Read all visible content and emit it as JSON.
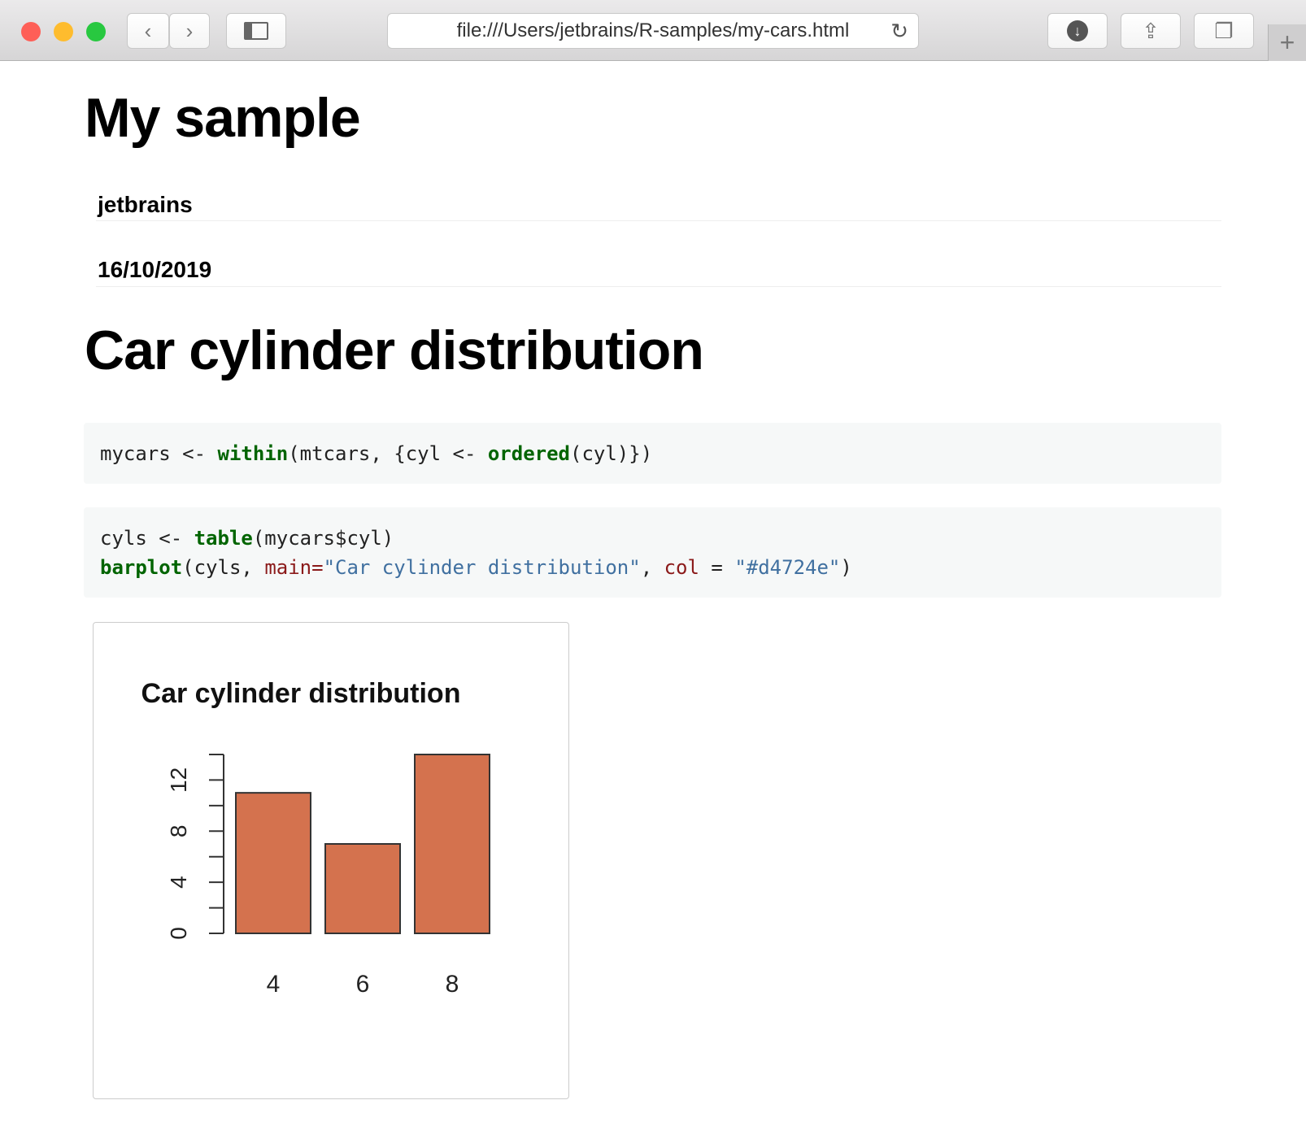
{
  "browser": {
    "url": "file:///Users/jetbrains/R-samples/my-cars.html",
    "icons": [
      "back-icon",
      "forward-icon",
      "sidebar-icon",
      "reload-icon",
      "download-icon",
      "share-icon",
      "tabs-icon",
      "new-tab-icon"
    ]
  },
  "page": {
    "title": "My sample",
    "author": "jetbrains",
    "date": "16/10/2019",
    "section": "Car cylinder distribution"
  },
  "code": {
    "block1": [
      "mycars <- ",
      "within",
      "(mtcars, {cyl <- ",
      "ordered",
      "(cyl)})"
    ],
    "block2_line1": [
      "cyls <- ",
      "table",
      "(mycars$cyl)"
    ],
    "block2_line2": [
      "barplot",
      "(cyls, ",
      "main=",
      "\"Car cylinder distribution\"",
      ", ",
      "col",
      " = ",
      "\"#d4724e\"",
      ")"
    ]
  },
  "chart_data": {
    "type": "bar",
    "title": "Car cylinder distribution",
    "categories": [
      "4",
      "6",
      "8"
    ],
    "values": [
      11,
      7,
      14
    ],
    "ylim": [
      0,
      14
    ],
    "yticks": [
      0,
      2,
      4,
      6,
      8,
      10,
      12,
      14
    ],
    "ytick_labels": [
      "0",
      "4",
      "8",
      "12"
    ],
    "color": "#d4724e",
    "xlabel": "",
    "ylabel": "",
    "grid": false
  }
}
